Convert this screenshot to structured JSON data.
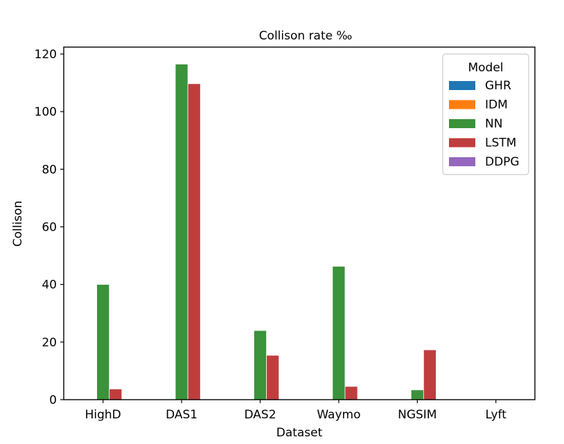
{
  "chart_data": {
    "type": "bar",
    "title": "Collison rate ‰",
    "xlabel": "Dataset",
    "ylabel": "Collison",
    "categories": [
      "HighD",
      "DAS1",
      "DAS2",
      "Waymo",
      "NGSIM",
      "Lyft"
    ],
    "ylim": [
      0,
      120
    ],
    "yticks": [
      0,
      20,
      40,
      60,
      80,
      100,
      120
    ],
    "grid": false,
    "legend_title": "Model",
    "legend_position": "top-right",
    "series": [
      {
        "name": "GHR",
        "color": "#1f77b4",
        "values": [
          0,
          0,
          0,
          0,
          0,
          0
        ]
      },
      {
        "name": "IDM",
        "color": "#ff7f0e",
        "values": [
          0,
          0,
          0,
          0,
          0,
          0
        ]
      },
      {
        "name": "NN",
        "color": "#3a923a",
        "values": [
          40,
          116.5,
          24,
          46.3,
          3.4,
          0
        ]
      },
      {
        "name": "LSTM",
        "color": "#c03d3e",
        "values": [
          3.7,
          109.7,
          15.4,
          4.6,
          17.3,
          0
        ]
      },
      {
        "name": "DDPG",
        "color": "#9467bd",
        "values": [
          0,
          0,
          0,
          0,
          0,
          0
        ]
      }
    ]
  }
}
